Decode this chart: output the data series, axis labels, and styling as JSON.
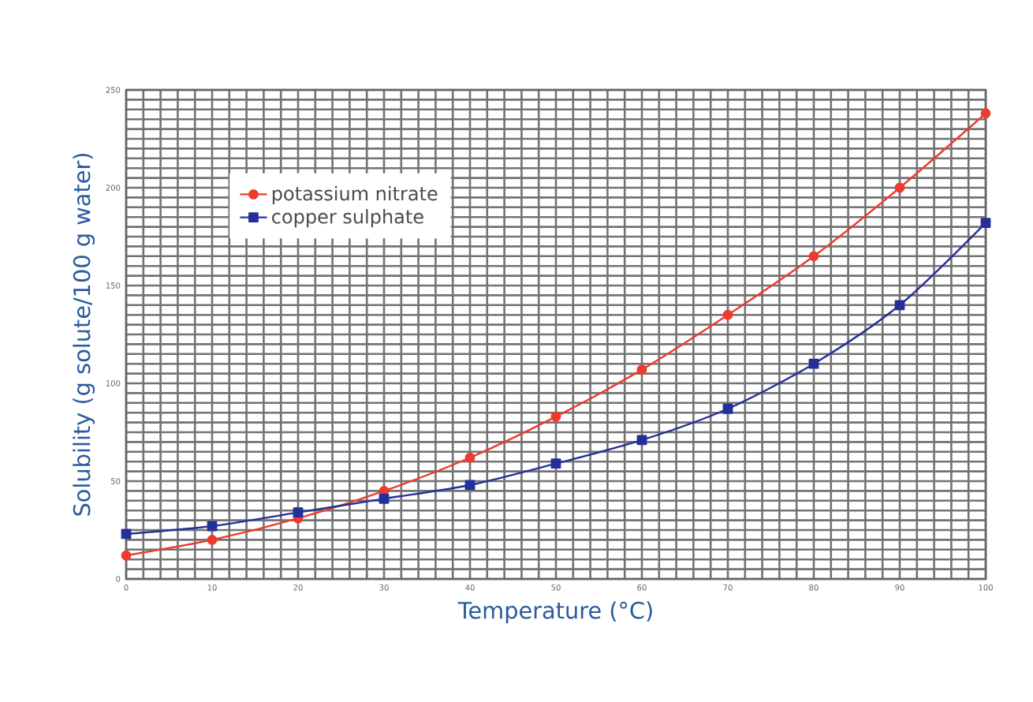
{
  "chart_data": {
    "type": "line",
    "xlabel": "Temperature (°C)",
    "ylabel": "Solubility (g solute/100 g water)",
    "x": [
      0,
      10,
      20,
      30,
      40,
      50,
      60,
      70,
      80,
      90,
      100
    ],
    "series": [
      {
        "name": "potassium nitrate",
        "color": "#ee3b2c",
        "marker": "circle",
        "values": [
          12,
          20,
          31,
          45,
          62,
          83,
          107,
          135,
          165,
          200,
          238
        ]
      },
      {
        "name": "copper sulphate",
        "color": "#24309a",
        "marker": "square",
        "values": [
          23,
          27,
          34,
          41,
          48,
          59,
          71,
          87,
          110,
          140,
          182
        ]
      }
    ],
    "xlim": [
      0,
      100
    ],
    "xticks": [
      0,
      10,
      20,
      30,
      40,
      50,
      60,
      70,
      80,
      90,
      100
    ],
    "ylim": [
      0,
      250
    ],
    "yticks": [
      0,
      50,
      100,
      150,
      200,
      250
    ],
    "grid": true,
    "legend": "top left",
    "line_style": "solid"
  }
}
